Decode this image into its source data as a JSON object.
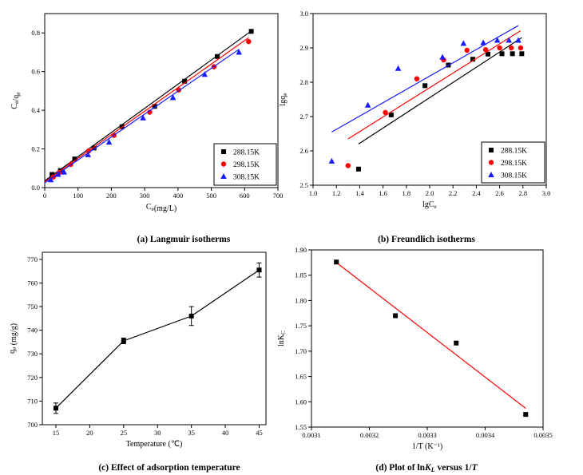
{
  "captions": [
    "(a) Langmuir isotherms",
    "(b) Freundlich isotherms",
    "(c) Effect of adsorption temperature",
    "(d) Plot of lnKL versus 1/T"
  ],
  "colors": {
    "black": "#000000",
    "red": "#ff0000",
    "blue": "#1a1aff"
  },
  "chart_data": [
    {
      "type": "scatter",
      "caption": "(a) Langmuir isotherms",
      "xlabel": "Ce(mg/L)",
      "ylabel": "Ce/qe",
      "xlim": [
        0,
        700
      ],
      "ylim": [
        0,
        0.9
      ],
      "xticks": [
        "0",
        "100",
        "200",
        "300",
        "400",
        "500",
        "600",
        "700"
      ],
      "yticks": [
        "0.0",
        "0.2",
        "0.4",
        "0.6",
        "0.8"
      ],
      "legend_position": "bottom-right",
      "series": [
        {
          "name": "288.15K",
          "color": "#000000",
          "marker": "square",
          "x": [
            22,
            47,
            90,
            148,
            232,
            330,
            420,
            518,
            620
          ],
          "y": [
            0.068,
            0.088,
            0.148,
            0.205,
            0.315,
            0.42,
            0.55,
            0.678,
            0.808
          ],
          "fit": [
            [
              0,
              0.035
            ],
            [
              620,
              0.81
            ]
          ]
        },
        {
          "name": "298.15K",
          "color": "#ff0000",
          "marker": "circle",
          "x": [
            26,
            44,
            78,
            132,
            208,
            315,
            402,
            508,
            612
          ],
          "y": [
            0.055,
            0.078,
            0.12,
            0.19,
            0.27,
            0.39,
            0.505,
            0.625,
            0.755
          ],
          "fit": [
            [
              0,
              0.03
            ],
            [
              612,
              0.775
            ]
          ]
        },
        {
          "name": "308.15K",
          "color": "#1a1aff",
          "marker": "triangle",
          "x": [
            18,
            40,
            58,
            130,
            193,
            295,
            385,
            480,
            583
          ],
          "y": [
            0.04,
            0.068,
            0.08,
            0.17,
            0.235,
            0.36,
            0.465,
            0.585,
            0.7
          ],
          "fit": [
            [
              0,
              0.025
            ],
            [
              583,
              0.715
            ]
          ]
        }
      ]
    },
    {
      "type": "scatter",
      "caption": "(b) Freundlich isotherms",
      "xlabel": "lgCe",
      "ylabel": "lgqe",
      "xlim": [
        1.0,
        3.0
      ],
      "ylim": [
        2.5,
        3.0
      ],
      "xticks": [
        "1.0",
        "1.2",
        "1.4",
        "1.6",
        "1.8",
        "2.0",
        "2.2",
        "2.4",
        "2.6",
        "2.8",
        "3.0"
      ],
      "yticks": [
        "2.5",
        "2.6",
        "2.7",
        "2.8",
        "2.9",
        "3.0"
      ],
      "legend_position": "bottom-right",
      "series": [
        {
          "name": "288.15K",
          "color": "#000000",
          "marker": "square",
          "x": [
            1.39,
            1.67,
            1.96,
            2.16,
            2.37,
            2.5,
            2.62,
            2.71,
            2.79
          ],
          "y": [
            2.547,
            2.705,
            2.79,
            2.85,
            2.867,
            2.882,
            2.883,
            2.883,
            2.883
          ],
          "fit": [
            [
              1.39,
              2.62
            ],
            [
              2.79,
              2.93
            ]
          ]
        },
        {
          "name": "298.15K",
          "color": "#ff0000",
          "marker": "circle",
          "x": [
            1.3,
            1.62,
            1.89,
            2.12,
            2.32,
            2.48,
            2.6,
            2.7,
            2.78
          ],
          "y": [
            2.557,
            2.712,
            2.81,
            2.865,
            2.893,
            2.895,
            2.9,
            2.9,
            2.9
          ],
          "fit": [
            [
              1.3,
              2.635
            ],
            [
              2.78,
              2.95
            ]
          ]
        },
        {
          "name": "308.15K",
          "color": "#1a1aff",
          "marker": "triangle",
          "x": [
            1.16,
            1.47,
            1.73,
            2.11,
            2.29,
            2.46,
            2.58,
            2.68,
            2.76
          ],
          "y": [
            2.57,
            2.733,
            2.84,
            2.873,
            2.913,
            2.915,
            2.922,
            2.922,
            2.922
          ],
          "fit": [
            [
              1.16,
              2.655
            ],
            [
              2.76,
              2.965
            ]
          ]
        }
      ]
    },
    {
      "type": "line",
      "caption": "(c) Effect of adsorption temperature",
      "xlabel": "Temperature (℃)",
      "ylabel": "qe (mg/g)",
      "xlim": [
        13,
        46
      ],
      "ylim": [
        700,
        773
      ],
      "xticks": [
        "15",
        "20",
        "25",
        "30",
        "35",
        "40",
        "45"
      ],
      "yticks": [
        "700",
        "710",
        "720",
        "730",
        "740",
        "750",
        "760",
        "770"
      ],
      "series": [
        {
          "name": "",
          "color": "#000000",
          "marker": "square",
          "x": [
            15,
            25,
            35,
            45
          ],
          "y": [
            707,
            735.5,
            746,
            765.5
          ],
          "err": [
            2.2,
            1.2,
            4.0,
            3.0
          ]
        }
      ]
    },
    {
      "type": "scatter",
      "caption": "(d) Plot of lnKL versus 1/T",
      "xlabel": "1/T (K⁻¹)",
      "ylabel": "lnKC",
      "xlim": [
        0.0031,
        0.0035
      ],
      "ylim": [
        1.55,
        1.9
      ],
      "xticks": [
        "0.0031",
        "0.0032",
        "0.0033",
        "0.0034",
        "0.0035"
      ],
      "yticks": [
        "1.55",
        "1.60",
        "1.65",
        "1.70",
        "1.75",
        "1.80",
        "1.85",
        "1.90"
      ],
      "series": [
        {
          "name": "",
          "color": "#000000",
          "marker": "square",
          "x": [
            0.003143,
            0.003245,
            0.00335,
            0.00347
          ],
          "y": [
            1.876,
            1.77,
            1.716,
            1.575
          ],
          "fit": [
            [
              0.003143,
              1.875
            ],
            [
              0.00347,
              1.587
            ]
          ]
        }
      ]
    }
  ]
}
